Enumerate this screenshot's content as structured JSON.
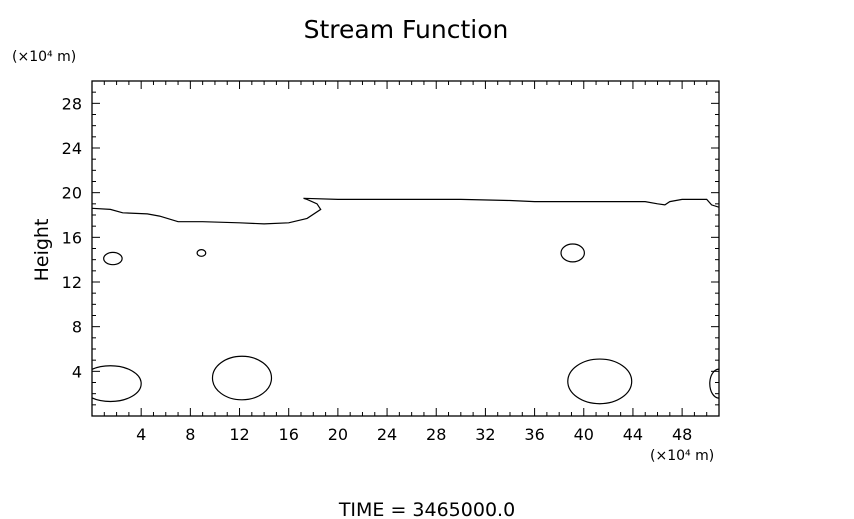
{
  "chart_data": {
    "type": "contour",
    "title": "Stream Function",
    "ylabel": "Height",
    "y_unit_label": "(×10⁴ m)",
    "x_unit_label": "(×10⁴ m)",
    "xlim": [
      0,
      51
    ],
    "ylim": [
      0,
      30
    ],
    "x_ticks": [
      4,
      8,
      12,
      16,
      20,
      24,
      28,
      32,
      36,
      40,
      44,
      48
    ],
    "y_ticks": [
      4,
      8,
      12,
      16,
      20,
      24,
      28
    ],
    "grid": false,
    "contours": [
      {
        "name": "upper-boundary-left",
        "points": [
          [
            0,
            18.6
          ],
          [
            1.5,
            18.5
          ],
          [
            2.5,
            18.2
          ],
          [
            4.5,
            18.1
          ],
          [
            5.5,
            17.9
          ],
          [
            7,
            17.4
          ],
          [
            9,
            17.4
          ],
          [
            12,
            17.3
          ],
          [
            14,
            17.2
          ],
          [
            16,
            17.3
          ],
          [
            17.5,
            17.7
          ],
          [
            18.6,
            18.5
          ],
          [
            18.3,
            19.0
          ],
          [
            17.5,
            19.4
          ],
          [
            17.2,
            19.5
          ]
        ]
      },
      {
        "name": "upper-boundary-right",
        "points": [
          [
            17.2,
            19.5
          ],
          [
            20,
            19.4
          ],
          [
            24,
            19.4
          ],
          [
            30,
            19.4
          ],
          [
            34,
            19.3
          ],
          [
            36,
            19.2
          ],
          [
            40,
            19.2
          ],
          [
            45,
            19.2
          ],
          [
            46,
            19.0
          ],
          [
            46.6,
            18.9
          ],
          [
            47,
            19.2
          ],
          [
            48,
            19.4
          ],
          [
            50,
            19.4
          ],
          [
            50.4,
            18.9
          ],
          [
            51,
            18.7
          ]
        ]
      }
    ],
    "cells": [
      {
        "cx": 1.7,
        "cy": 14.1,
        "rx": 0.75,
        "ry": 0.55
      },
      {
        "cx": 8.9,
        "cy": 14.6,
        "rx": 0.35,
        "ry": 0.3
      },
      {
        "cx": 39.1,
        "cy": 14.6,
        "rx": 0.95,
        "ry": 0.8
      },
      {
        "cx": 1.5,
        "cy": 2.9,
        "rx": 2.5,
        "ry": 1.6
      },
      {
        "cx": 12.2,
        "cy": 3.4,
        "rx": 2.4,
        "ry": 1.95
      },
      {
        "cx": 41.3,
        "cy": 3.1,
        "rx": 2.6,
        "ry": 2.0
      },
      {
        "cx": 51.0,
        "cy": 2.9,
        "rx": 0.75,
        "ry": 1.3
      }
    ]
  },
  "footer": {
    "time_label": "TIME  =  3465000.0"
  }
}
